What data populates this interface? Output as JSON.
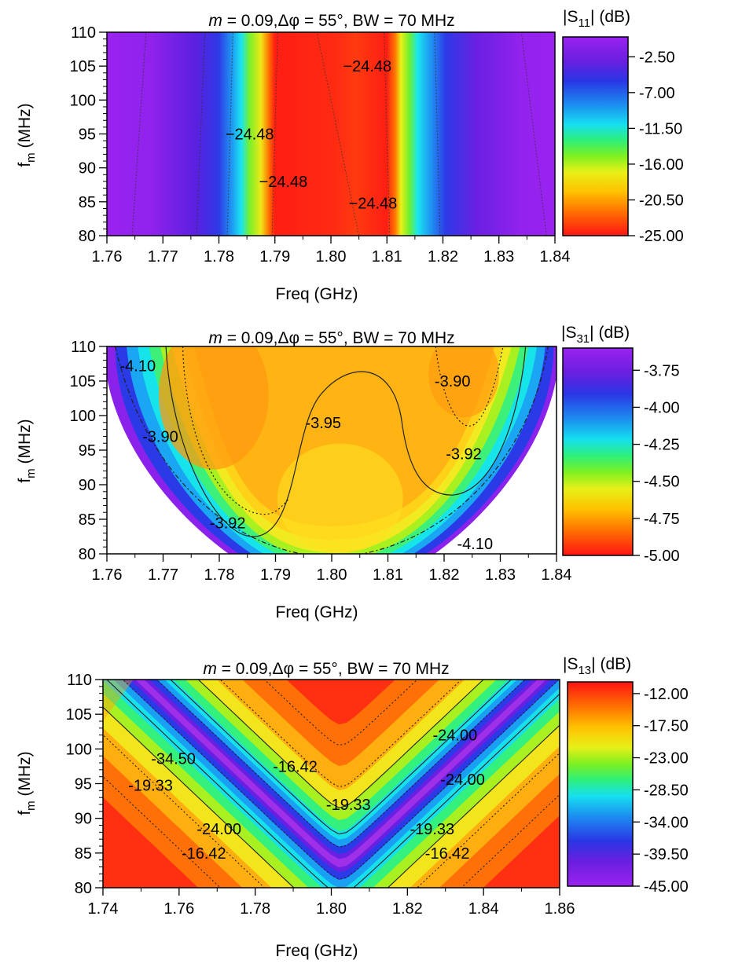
{
  "chart_data": [
    {
      "type": "heatmap",
      "title": "m = 0.09,Δφ = 55°, BW = 70 MHz",
      "title_parts": {
        "m": "m",
        "rest": " = 0.09,Δφ = 55°, BW = 70 MHz"
      },
      "xlabel": "Freq (GHz)",
      "ylabel": {
        "base": "f",
        "sub": "m",
        "rest": " (MHz)"
      },
      "xlim": [
        1.76,
        1.84
      ],
      "ylim": [
        80,
        110
      ],
      "xticks": [
        "1.76",
        "1.77",
        "1.78",
        "1.79",
        "1.80",
        "1.81",
        "1.82",
        "1.83",
        "1.84"
      ],
      "yticks": [
        "80",
        "85",
        "90",
        "95",
        "100",
        "105",
        "110"
      ],
      "colorbar": {
        "title": {
          "pre": "|S",
          "sub": "11",
          "post": "| (dB)"
        },
        "min": -25.0,
        "max": 0.0,
        "ticks": [
          "-2.50",
          "-7.00",
          "-11.50",
          "-16.00",
          "-20.50",
          "-25.00"
        ],
        "tick_values": [
          -2.5,
          -7.0,
          -11.5,
          -16.0,
          -20.5,
          -25.0
        ]
      },
      "contour_labels": [
        {
          "text": "−24.48",
          "x": 1.8065,
          "y": 105.0
        },
        {
          "text": "−24.48",
          "x": 1.7855,
          "y": 95.0
        },
        {
          "text": "−24.48",
          "x": 1.7915,
          "y": 88.0
        },
        {
          "text": "−24.48",
          "x": 1.8075,
          "y": 84.8
        }
      ]
    },
    {
      "type": "heatmap",
      "title": "m = 0.09,Δφ = 55°, BW = 70 MHz",
      "title_parts": {
        "m": "m",
        "rest": " = 0.09,Δφ = 55°, BW = 70 MHz"
      },
      "xlabel": "Freq (GHz)",
      "ylabel": {
        "base": "f",
        "sub": "m",
        "rest": " (MHz)"
      },
      "xlim": [
        1.76,
        1.84
      ],
      "ylim": [
        80,
        110
      ],
      "xticks": [
        "1.76",
        "1.77",
        "1.78",
        "1.79",
        "1.80",
        "1.81",
        "1.82",
        "1.83",
        "1.84"
      ],
      "yticks": [
        "80",
        "85",
        "90",
        "95",
        "100",
        "105",
        "110"
      ],
      "colorbar": {
        "title": {
          "pre": "|S",
          "sub": "31",
          "post": "| (dB)"
        },
        "min": -5.0,
        "max": -3.6,
        "ticks": [
          "-3.75",
          "-4.00",
          "-4.25",
          "-4.50",
          "-4.75",
          "-5.00"
        ],
        "tick_values": [
          -3.75,
          -4.0,
          -4.25,
          -4.5,
          -4.75,
          -5.0
        ]
      },
      "contour_labels": [
        {
          "text": "-4.10",
          "x": 1.7655,
          "y": 107.2
        },
        {
          "text": "-3.90",
          "x": 1.7695,
          "y": 97.0
        },
        {
          "text": "-3.95",
          "x": 1.7985,
          "y": 99.0
        },
        {
          "text": "-3.90",
          "x": 1.8215,
          "y": 105.0
        },
        {
          "text": "-3.92",
          "x": 1.8235,
          "y": 94.5
        },
        {
          "text": "-3.92",
          "x": 1.7815,
          "y": 84.5
        },
        {
          "text": "-4.10",
          "x": 1.8255,
          "y": 81.5
        }
      ]
    },
    {
      "type": "heatmap",
      "title": "m = 0.09,Δφ = 55°, BW = 70 MHz",
      "title_parts": {
        "m": "m",
        "rest": " = 0.09,Δφ = 55°, BW = 70 MHz"
      },
      "xlabel": "Freq (GHz)",
      "ylabel": {
        "base": "f",
        "sub": "m",
        "rest": " (MHz)"
      },
      "xlim": [
        1.74,
        1.86
      ],
      "ylim": [
        80,
        110
      ],
      "xticks": [
        "1.74",
        "1.76",
        "1.78",
        "1.80",
        "1.82",
        "1.84",
        "1.86"
      ],
      "yticks": [
        "80",
        "85",
        "90",
        "95",
        "100",
        "105",
        "110"
      ],
      "colorbar": {
        "title": {
          "pre": "|S",
          "sub": "13",
          "post": "| (dB)"
        },
        "min": -45.0,
        "max": -10.0,
        "ticks": [
          "-12.00",
          "-17.50",
          "-23.00",
          "-28.50",
          "-34.00",
          "-39.50",
          "-45.00"
        ],
        "tick_values": [
          -12.0,
          -17.5,
          -23.0,
          -28.5,
          -34.0,
          -39.5,
          -45.0
        ]
      },
      "contour_labels": [
        {
          "text": "-24.00",
          "x": 1.8325,
          "y": 102.0
        },
        {
          "text": "-34.50",
          "x": 1.7585,
          "y": 98.6
        },
        {
          "text": "-16.42",
          "x": 1.7905,
          "y": 97.5
        },
        {
          "text": "-24.00",
          "x": 1.8345,
          "y": 95.6
        },
        {
          "text": "-19.33",
          "x": 1.7525,
          "y": 94.8
        },
        {
          "text": "-19.33",
          "x": 1.8045,
          "y": 92.0
        },
        {
          "text": "-19.33",
          "x": 1.8265,
          "y": 88.5
        },
        {
          "text": "-24.00",
          "x": 1.7705,
          "y": 88.5
        },
        {
          "text": "-16.42",
          "x": 1.7665,
          "y": 85.0
        },
        {
          "text": "-16.42",
          "x": 1.8305,
          "y": 85.0
        }
      ]
    }
  ]
}
